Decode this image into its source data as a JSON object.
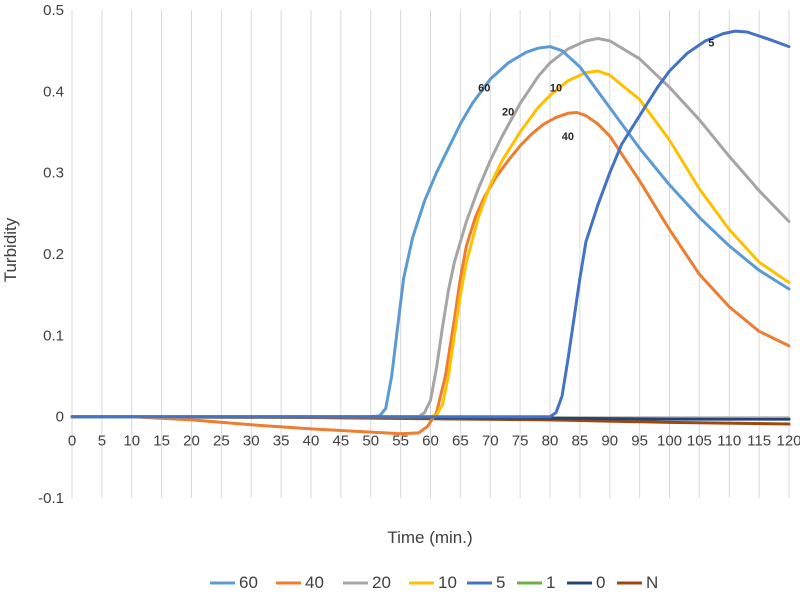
{
  "chart_data": {
    "type": "line",
    "title": "",
    "xlabel": "Time (min.)",
    "ylabel": "Turbidity",
    "xlim": [
      0,
      120
    ],
    "ylim": [
      -0.1,
      0.5
    ],
    "x_ticks": [
      0,
      5,
      10,
      15,
      20,
      25,
      30,
      35,
      40,
      45,
      50,
      55,
      60,
      65,
      70,
      75,
      80,
      85,
      90,
      95,
      100,
      105,
      110,
      115,
      120
    ],
    "y_ticks": [
      -0.1,
      0,
      0.1,
      0.2,
      0.3,
      0.4,
      0.5
    ],
    "y_tick_labels": [
      "-0.1",
      "0",
      "0.1",
      "0.2",
      "0.3",
      "0.4",
      "0.5"
    ],
    "grid": "vertical",
    "legend_position": "bottom",
    "series": [
      {
        "name": "60",
        "color": "#5B9BD5",
        "x": [
          0,
          50,
          51.5,
          52.5,
          53.5,
          54.5,
          55.5,
          57,
          59,
          61,
          63,
          65,
          67,
          70,
          73,
          76,
          78,
          80,
          82,
          85,
          90,
          95,
          100,
          105,
          110,
          115,
          120
        ],
        "y": [
          0,
          0,
          0.001,
          0.01,
          0.05,
          0.11,
          0.17,
          0.22,
          0.265,
          0.3,
          0.33,
          0.36,
          0.385,
          0.415,
          0.435,
          0.448,
          0.453,
          0.455,
          0.45,
          0.43,
          0.38,
          0.33,
          0.285,
          0.245,
          0.21,
          0.18,
          0.157
        ]
      },
      {
        "name": "40",
        "color": "#ED7D31",
        "x": [
          0,
          10,
          20,
          30,
          40,
          50,
          55,
          58,
          59.5,
          61,
          62.5,
          64,
          65,
          66,
          67.5,
          69,
          71,
          73,
          75,
          77,
          79,
          81,
          83,
          84.5,
          86,
          88,
          90,
          95,
          100,
          105,
          110,
          115,
          120
        ],
        "y": [
          0,
          0,
          -0.004,
          -0.01,
          -0.015,
          -0.019,
          -0.021,
          -0.02,
          -0.012,
          0.005,
          0.05,
          0.12,
          0.17,
          0.21,
          0.245,
          0.27,
          0.295,
          0.315,
          0.333,
          0.348,
          0.36,
          0.368,
          0.373,
          0.374,
          0.37,
          0.36,
          0.345,
          0.29,
          0.23,
          0.175,
          0.135,
          0.105,
          0.087
        ]
      },
      {
        "name": "20",
        "color": "#A5A5A5",
        "x": [
          0,
          58,
          59,
          60,
          61,
          62,
          63,
          64,
          66,
          68,
          70,
          72,
          75,
          78,
          80,
          83,
          86,
          88,
          90,
          95,
          100,
          105,
          110,
          115,
          120
        ],
        "y": [
          0,
          0,
          0.005,
          0.02,
          0.06,
          0.11,
          0.155,
          0.19,
          0.24,
          0.28,
          0.315,
          0.345,
          0.385,
          0.418,
          0.435,
          0.452,
          0.462,
          0.465,
          0.462,
          0.44,
          0.405,
          0.365,
          0.32,
          0.278,
          0.24
        ]
      },
      {
        "name": "10",
        "color": "#FFC000",
        "x": [
          0,
          60,
          61,
          62,
          63,
          64,
          65,
          66,
          68,
          70,
          72,
          75,
          78,
          80,
          83,
          86,
          88,
          90,
          95,
          100,
          105,
          110,
          115,
          120
        ],
        "y": [
          0,
          0,
          0.002,
          0.015,
          0.05,
          0.1,
          0.15,
          0.19,
          0.245,
          0.285,
          0.315,
          0.35,
          0.38,
          0.395,
          0.413,
          0.423,
          0.425,
          0.42,
          0.39,
          0.34,
          0.28,
          0.23,
          0.19,
          0.165
        ]
      },
      {
        "name": "5",
        "color": "#4472C4",
        "x": [
          0,
          80,
          81,
          82,
          83,
          84,
          85,
          86,
          88,
          90,
          92,
          95,
          98,
          100,
          103,
          106,
          109,
          111,
          113,
          115,
          117,
          120
        ],
        "y": [
          0,
          0,
          0.005,
          0.025,
          0.07,
          0.12,
          0.17,
          0.215,
          0.26,
          0.3,
          0.335,
          0.37,
          0.405,
          0.425,
          0.447,
          0.462,
          0.471,
          0.474,
          0.473,
          0.468,
          0.463,
          0.455
        ]
      },
      {
        "name": "1",
        "color": "#70AD47",
        "x": [
          0,
          40,
          80,
          120
        ],
        "y": [
          0,
          -0.001,
          -0.002,
          -0.003
        ]
      },
      {
        "name": "0",
        "color": "#264478",
        "x": [
          0,
          40,
          80,
          100,
          120
        ],
        "y": [
          0,
          0,
          -0.002,
          -0.003,
          -0.003
        ]
      },
      {
        "name": "N",
        "color": "#9E480E",
        "x": [
          0,
          40,
          80,
          100,
          120
        ],
        "y": [
          0,
          -0.001,
          -0.004,
          -0.007,
          -0.009
        ]
      }
    ],
    "annotations": [
      {
        "text": "60",
        "x": 69,
        "y": 0.4
      },
      {
        "text": "20",
        "x": 73,
        "y": 0.37
      },
      {
        "text": "10",
        "x": 81,
        "y": 0.4
      },
      {
        "text": "40",
        "x": 83,
        "y": 0.34
      },
      {
        "text": "5",
        "x": 107,
        "y": 0.455
      }
    ]
  }
}
